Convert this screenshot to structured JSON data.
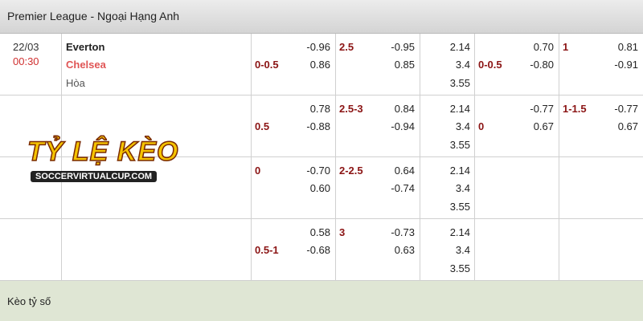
{
  "header": {
    "title": "Premier League - Ngoại Hạng Anh"
  },
  "match": {
    "date": "22/03",
    "time": "00:30",
    "home": "Everton",
    "away": "Chelsea",
    "draw": "Hòa"
  },
  "rows": [
    {
      "handicap": [
        {
          "value": "-0.96"
        },
        {
          "label": "0-0.5",
          "value": "0.86"
        }
      ],
      "over_under": [
        {
          "label": "2.5",
          "value": "-0.95"
        },
        {
          "value": "0.85"
        }
      ],
      "odds_1x2": [
        "2.14",
        "3.4",
        "3.55"
      ],
      "h1_handicap": [
        {
          "value": "0.70"
        },
        {
          "label": "0-0.5",
          "value": "-0.80"
        }
      ],
      "h1_over_under": [
        {
          "label": "1",
          "value": "0.81"
        },
        {
          "value": "-0.91"
        }
      ]
    },
    {
      "handicap": [
        {
          "value": "0.78"
        },
        {
          "label": "0.5",
          "value": "-0.88"
        }
      ],
      "over_under": [
        {
          "label": "2.5-3",
          "value": "0.84"
        },
        {
          "value": "-0.94"
        }
      ],
      "odds_1x2": [
        "2.14",
        "3.4",
        "3.55"
      ],
      "h1_handicap": [
        {
          "value": "-0.77"
        },
        {
          "label": "0",
          "value": "0.67"
        }
      ],
      "h1_over_under": [
        {
          "label": "1-1.5",
          "value": "-0.77"
        },
        {
          "value": "0.67"
        }
      ]
    },
    {
      "handicap": [
        {
          "label": "0",
          "value": "-0.70"
        },
        {
          "value": "0.60"
        }
      ],
      "over_under": [
        {
          "label": "2-2.5",
          "value": "0.64"
        },
        {
          "value": "-0.74"
        }
      ],
      "odds_1x2": [
        "2.14",
        "3.4",
        "3.55"
      ],
      "h1_handicap": [],
      "h1_over_under": []
    },
    {
      "handicap": [
        {
          "value": "0.58"
        },
        {
          "label": "0.5-1",
          "value": "-0.68"
        }
      ],
      "over_under": [
        {
          "label": "3",
          "value": "-0.73"
        },
        {
          "value": "0.63"
        }
      ],
      "odds_1x2": [
        "2.14",
        "3.4",
        "3.55"
      ],
      "h1_handicap": [],
      "h1_over_under": []
    }
  ],
  "watermark": {
    "title": "TỶ LỆ KÈO",
    "site": "SOCCERVIRTUALCUP.COM"
  },
  "footer": {
    "title": "Kèo tỷ số"
  }
}
